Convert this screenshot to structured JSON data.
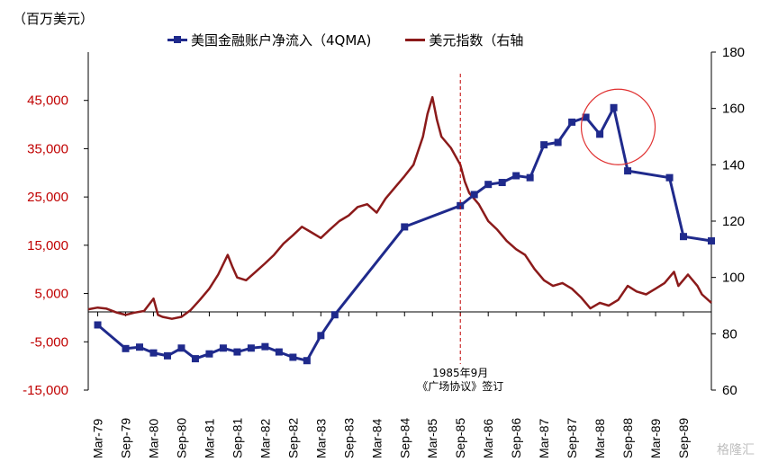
{
  "unit_label": "（百万美元）",
  "watermark": "格隆汇",
  "colors": {
    "flow": "#1f2a8c",
    "dxy": "#8b1a1a",
    "left_axis_text": "#c00000",
    "right_axis_text": "#000000",
    "annotation_line": "#c00000",
    "circle": "#e03030"
  },
  "chart_data": {
    "type": "line",
    "title": "",
    "categories": [
      "Mar-79",
      "Sep-79",
      "Mar-80",
      "Sep-80",
      "Mar-81",
      "Sep-81",
      "Mar-82",
      "Sep-82",
      "Mar-83",
      "Sep-83",
      "Mar-84",
      "Sep-84",
      "Mar-85",
      "Sep-85",
      "Mar-86",
      "Sep-86",
      "Mar-87",
      "Sep-87",
      "Mar-88",
      "Sep-88",
      "Mar-89",
      "Sep-89"
    ],
    "left_axis": {
      "ylim": [
        -15000,
        55000
      ],
      "ticks": [
        -15000,
        -5000,
        5000,
        15000,
        25000,
        35000,
        45000
      ],
      "tick_labels": [
        "-15,000",
        "-5,000",
        "5,000",
        "15,000",
        "25,000",
        "35,000",
        "45,000"
      ]
    },
    "right_axis": {
      "ylim": [
        60,
        180
      ],
      "ticks": [
        60,
        80,
        100,
        120,
        140,
        160,
        180
      ],
      "tick_labels": [
        "60",
        "80",
        "100",
        "120",
        "140",
        "160",
        "180"
      ]
    },
    "series": [
      {
        "name": "美国金融账户净流入（4QMA)",
        "axis": "left",
        "marker": "square",
        "points": [
          [
            1979.17,
            -1500
          ],
          [
            1979.67,
            -6400
          ],
          [
            1979.92,
            -6100
          ],
          [
            1980.17,
            -7300
          ],
          [
            1980.42,
            -7900
          ],
          [
            1980.67,
            -6300
          ],
          [
            1980.92,
            -8500
          ],
          [
            1981.17,
            -7500
          ],
          [
            1981.42,
            -6300
          ],
          [
            1981.67,
            -7100
          ],
          [
            1981.92,
            -6300
          ],
          [
            1982.17,
            -6000
          ],
          [
            1982.42,
            -7100
          ],
          [
            1982.67,
            -8200
          ],
          [
            1982.92,
            -8900
          ],
          [
            1983.17,
            -3700
          ],
          [
            1983.42,
            600
          ],
          [
            1984.67,
            18800
          ],
          [
            1985.67,
            23200
          ],
          [
            1985.92,
            25500
          ],
          [
            1986.17,
            27600
          ],
          [
            1986.42,
            28000
          ],
          [
            1986.67,
            29400
          ],
          [
            1986.92,
            29000
          ],
          [
            1987.17,
            35800
          ],
          [
            1987.42,
            36300
          ],
          [
            1987.67,
            40500
          ],
          [
            1987.92,
            41500
          ],
          [
            1988.17,
            38000
          ],
          [
            1988.42,
            43500
          ],
          [
            1988.67,
            30400
          ],
          [
            1989.42,
            29000
          ],
          [
            1989.67,
            16800
          ],
          [
            1990.17,
            15900
          ]
        ]
      },
      {
        "name": "美元指数（右轴",
        "axis": "right",
        "marker": "none",
        "points": [
          [
            1979.0,
            88.7
          ],
          [
            1979.17,
            89.3
          ],
          [
            1979.33,
            88.9
          ],
          [
            1979.5,
            87.6
          ],
          [
            1979.67,
            86.7
          ],
          [
            1979.83,
            87.5
          ],
          [
            1980.0,
            88.1
          ],
          [
            1980.17,
            92.5
          ],
          [
            1980.25,
            86.7
          ],
          [
            1980.33,
            86.0
          ],
          [
            1980.5,
            85.3
          ],
          [
            1980.67,
            86.0
          ],
          [
            1980.83,
            88.3
          ],
          [
            1981.0,
            92.0
          ],
          [
            1981.17,
            96.0
          ],
          [
            1981.33,
            101.0
          ],
          [
            1981.5,
            108.0
          ],
          [
            1981.58,
            104.0
          ],
          [
            1981.67,
            100.0
          ],
          [
            1981.83,
            99.0
          ],
          [
            1982.0,
            102.0
          ],
          [
            1982.17,
            105.0
          ],
          [
            1982.33,
            108.0
          ],
          [
            1982.5,
            112.0
          ],
          [
            1982.67,
            115.0
          ],
          [
            1982.83,
            118.0
          ],
          [
            1983.0,
            116.0
          ],
          [
            1983.17,
            114.0
          ],
          [
            1983.33,
            117.0
          ],
          [
            1983.5,
            120.0
          ],
          [
            1983.67,
            122.0
          ],
          [
            1983.83,
            125.0
          ],
          [
            1984.0,
            126.0
          ],
          [
            1984.17,
            123.0
          ],
          [
            1984.33,
            128.0
          ],
          [
            1984.5,
            132.0
          ],
          [
            1984.67,
            136.0
          ],
          [
            1984.83,
            140.0
          ],
          [
            1985.0,
            150.0
          ],
          [
            1985.08,
            158.0
          ],
          [
            1985.17,
            164.0
          ],
          [
            1985.25,
            156.0
          ],
          [
            1985.33,
            150.0
          ],
          [
            1985.5,
            146.0
          ],
          [
            1985.67,
            140.0
          ],
          [
            1985.75,
            134.0
          ],
          [
            1985.83,
            130.0
          ],
          [
            1986.0,
            126.0
          ],
          [
            1986.17,
            120.0
          ],
          [
            1986.33,
            117.0
          ],
          [
            1986.5,
            113.0
          ],
          [
            1986.67,
            110.0
          ],
          [
            1986.83,
            108.0
          ],
          [
            1987.0,
            103.0
          ],
          [
            1987.17,
            99.0
          ],
          [
            1987.33,
            97.0
          ],
          [
            1987.5,
            98.0
          ],
          [
            1987.67,
            96.0
          ],
          [
            1987.83,
            93.0
          ],
          [
            1988.0,
            89.0
          ],
          [
            1988.17,
            91.0
          ],
          [
            1988.33,
            90.0
          ],
          [
            1988.5,
            92.0
          ],
          [
            1988.67,
            97.0
          ],
          [
            1988.83,
            95.0
          ],
          [
            1989.0,
            94.0
          ],
          [
            1989.17,
            96.0
          ],
          [
            1989.33,
            98.0
          ],
          [
            1989.5,
            102.0
          ],
          [
            1989.58,
            97.0
          ],
          [
            1989.75,
            101.0
          ],
          [
            1989.92,
            97.0
          ],
          [
            1990.0,
            94.0
          ],
          [
            1990.17,
            91.0
          ]
        ]
      }
    ],
    "annotation": {
      "x": 1985.67,
      "line1": "1985年9月",
      "line2": "《广场协议》签订"
    },
    "highlight_circle": {
      "x": 1988.5,
      "y_left": 39500
    },
    "grid": false,
    "legend_position": "top"
  }
}
